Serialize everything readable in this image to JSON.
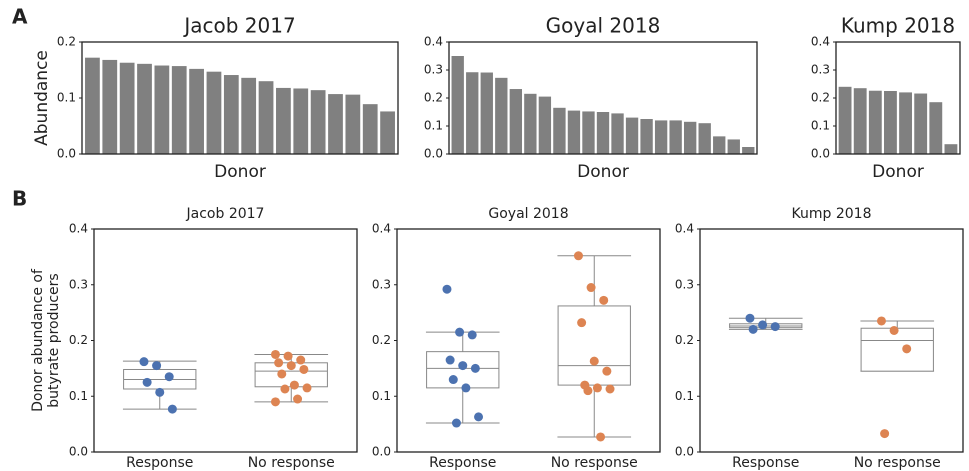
{
  "panel_labels": [
    "A",
    "B"
  ],
  "chart_data": [
    {
      "type": "bar",
      "title": "Jacob 2017",
      "xlabel": "Donor",
      "ylabel": "Abundance",
      "color": "#808080",
      "values": [
        0.172,
        0.168,
        0.163,
        0.161,
        0.158,
        0.157,
        0.152,
        0.147,
        0.141,
        0.136,
        0.13,
        0.118,
        0.117,
        0.114,
        0.107,
        0.106,
        0.089,
        0.076
      ],
      "ylim": [
        0,
        0.2
      ],
      "yticks": [
        {
          "value": 0,
          "label": "0.0"
        },
        {
          "value": 0.1,
          "label": "0.1"
        },
        {
          "value": 0.2,
          "label": "0.2"
        }
      ]
    },
    {
      "type": "bar",
      "title": "Goyal 2018",
      "xlabel": "Donor",
      "color": "#808080",
      "values": [
        0.35,
        0.292,
        0.291,
        0.272,
        0.232,
        0.215,
        0.205,
        0.165,
        0.155,
        0.152,
        0.15,
        0.145,
        0.13,
        0.125,
        0.12,
        0.12,
        0.115,
        0.11,
        0.063,
        0.052,
        0.025
      ],
      "ylim": [
        0,
        0.4
      ],
      "yticks": [
        {
          "value": 0,
          "label": "0.0"
        },
        {
          "value": 0.1,
          "label": "0.1"
        },
        {
          "value": 0.2,
          "label": "0.2"
        },
        {
          "value": 0.3,
          "label": "0.3"
        },
        {
          "value": 0.4,
          "label": "0.4"
        }
      ]
    },
    {
      "type": "bar",
      "title": "Kump 2018",
      "xlabel": "Donor",
      "color": "#808080",
      "values": [
        0.24,
        0.235,
        0.226,
        0.225,
        0.22,
        0.216,
        0.185,
        0.035
      ],
      "ylim": [
        0,
        0.4
      ],
      "yticks": [
        {
          "value": 0,
          "label": "0.0"
        },
        {
          "value": 0.1,
          "label": "0.1"
        },
        {
          "value": 0.2,
          "label": "0.2"
        },
        {
          "value": 0.3,
          "label": "0.3"
        },
        {
          "value": 0.4,
          "label": "0.4"
        }
      ]
    },
    {
      "type": "box",
      "title": "Jacob 2017",
      "ylabel": [
        "Donor abundance of",
        "butyrate producers"
      ],
      "categories": [
        "Response",
        "No response"
      ],
      "groups": [
        {
          "color": "#4c72b0",
          "values": [
            0.162,
            0.155,
            0.135,
            0.125,
            0.107,
            0.077
          ],
          "whislo": 0.077,
          "q1": 0.113,
          "med": 0.13,
          "q3": 0.148,
          "whishi": 0.163
        },
        {
          "color": "#dd8452",
          "values": [
            0.175,
            0.172,
            0.165,
            0.16,
            0.155,
            0.148,
            0.14,
            0.12,
            0.115,
            0.113,
            0.095,
            0.09
          ],
          "whislo": 0.09,
          "q1": 0.117,
          "med": 0.145,
          "q3": 0.16,
          "whishi": 0.175
        }
      ],
      "ylim": [
        0,
        0.4
      ],
      "yticks": [
        {
          "value": 0,
          "label": "0.0"
        },
        {
          "value": 0.1,
          "label": "0.1"
        },
        {
          "value": 0.2,
          "label": "0.2"
        },
        {
          "value": 0.3,
          "label": "0.3"
        },
        {
          "value": 0.4,
          "label": "0.4"
        }
      ]
    },
    {
      "type": "box",
      "title": "Goyal 2018",
      "categories": [
        "Response",
        "No response"
      ],
      "groups": [
        {
          "color": "#4c72b0",
          "values": [
            0.292,
            0.215,
            0.21,
            0.165,
            0.155,
            0.15,
            0.13,
            0.115,
            0.063,
            0.052
          ],
          "whislo": 0.052,
          "q1": 0.115,
          "med": 0.15,
          "q3": 0.18,
          "whishi": 0.215
        },
        {
          "color": "#dd8452",
          "values": [
            0.352,
            0.295,
            0.272,
            0.232,
            0.163,
            0.145,
            0.12,
            0.115,
            0.113,
            0.11,
            0.027
          ],
          "whislo": 0.027,
          "q1": 0.12,
          "med": 0.155,
          "q3": 0.262,
          "whishi": 0.352
        }
      ],
      "ylim": [
        0,
        0.4
      ],
      "yticks": [
        {
          "value": 0,
          "label": "0.0"
        },
        {
          "value": 0.1,
          "label": "0.1"
        },
        {
          "value": 0.2,
          "label": "0.2"
        },
        {
          "value": 0.3,
          "label": "0.3"
        },
        {
          "value": 0.4,
          "label": "0.4"
        }
      ]
    },
    {
      "type": "box",
      "title": "Kump 2018",
      "categories": [
        "Response",
        "No response"
      ],
      "groups": [
        {
          "color": "#4c72b0",
          "values": [
            0.24,
            0.228,
            0.225,
            0.22
          ],
          "whislo": 0.22,
          "q1": 0.223,
          "med": 0.226,
          "q3": 0.23,
          "whishi": 0.24
        },
        {
          "color": "#dd8452",
          "values": [
            0.235,
            0.218,
            0.185,
            0.033
          ],
          "whislo": 0.145,
          "q1": 0.145,
          "med": 0.2,
          "q3": 0.222,
          "whishi": 0.235
        }
      ],
      "ylim": [
        0,
        0.4
      ],
      "yticks": [
        {
          "value": 0,
          "label": "0.0"
        },
        {
          "value": 0.1,
          "label": "0.1"
        },
        {
          "value": 0.2,
          "label": "0.2"
        },
        {
          "value": 0.3,
          "label": "0.3"
        },
        {
          "value": 0.4,
          "label": "0.4"
        }
      ]
    }
  ]
}
